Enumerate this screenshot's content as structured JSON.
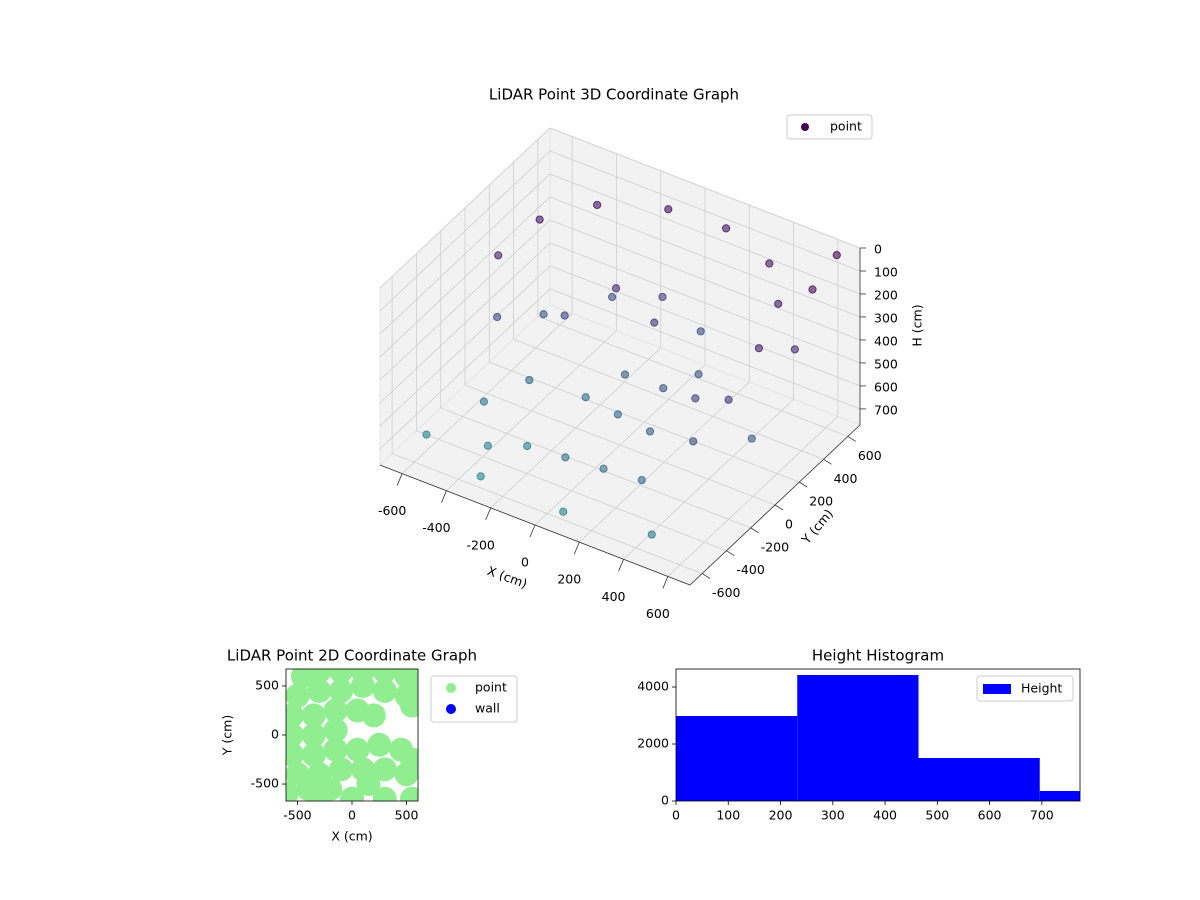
{
  "chart_data": [
    {
      "type": "scatter3d",
      "title": "LiDAR Point 3D Coordinate Graph",
      "xlabel": "X (cm)",
      "ylabel": "Y (cm)",
      "zlabel": "H (cm)",
      "series": [
        {
          "name": "point",
          "colormap": [
            "#440154",
            "#3b528b",
            "#21918c"
          ],
          "x": [
            -550,
            -500,
            -350,
            -100,
            150,
            400,
            550,
            600,
            600,
            550,
            -500,
            -400,
            -200,
            0,
            200,
            300,
            -300,
            -100,
            100,
            300,
            -450,
            -200,
            0,
            200,
            400,
            -600,
            -300,
            100,
            500,
            650,
            650,
            680,
            650,
            -100,
            100,
            -250,
            50,
            250,
            -350,
            450
          ],
          "y": [
            0,
            250,
            450,
            580,
            600,
            500,
            300,
            50,
            -200,
            -400,
            -100,
            100,
            300,
            350,
            300,
            100,
            -200,
            -100,
            -200,
            -300,
            -300,
            -400,
            -450,
            -500,
            -550,
            -500,
            -600,
            -650,
            -650,
            600,
            400,
            200,
            -100,
            150,
            100,
            0,
            -50,
            -100,
            -450,
            -200
          ],
          "z": [
            150,
            100,
            80,
            70,
            70,
            80,
            100,
            150,
            250,
            350,
            350,
            400,
            350,
            300,
            350,
            400,
            500,
            550,
            500,
            450,
            600,
            650,
            600,
            550,
            500,
            700,
            720,
            700,
            650,
            0,
            50,
            200,
            450,
            200,
            250,
            300,
            420,
            380,
            680,
            300
          ]
        }
      ],
      "xlim": [
        -700,
        700
      ],
      "ylim": [
        -700,
        700
      ],
      "zlim": [
        770,
        0
      ],
      "xticks": [
        -600,
        -400,
        -200,
        0,
        200,
        400,
        600
      ],
      "yticks": [
        -600,
        -400,
        -200,
        0,
        200,
        400,
        600
      ],
      "zticks": [
        0,
        100,
        200,
        300,
        400,
        500,
        600,
        700
      ],
      "legend": "upper right",
      "grid": true
    },
    {
      "type": "scatter",
      "title": "LiDAR Point 2D Coordinate Graph",
      "xlabel": "X (cm)",
      "ylabel": "Y (cm)",
      "series": [
        {
          "name": "point",
          "color": "#90ee90",
          "x": [
            -450,
            -300,
            -100,
            100,
            300,
            500,
            600,
            -500,
            -300,
            -100,
            100,
            300,
            500,
            550,
            -550,
            -350,
            -150,
            50,
            200,
            -550,
            -350,
            -150,
            -550,
            -350,
            -150,
            50,
            250,
            450,
            550,
            -500,
            -300,
            -100,
            100,
            300,
            500,
            -400,
            -200,
            150,
            -600,
            -300,
            0,
            300,
            550
          ],
          "y": [
            600,
            650,
            650,
            650,
            650,
            600,
            550,
            400,
            450,
            450,
            500,
            450,
            400,
            300,
            200,
            200,
            250,
            250,
            200,
            0,
            0,
            50,
            -200,
            -200,
            -150,
            -150,
            -100,
            -150,
            -250,
            -400,
            -400,
            -350,
            -350,
            -350,
            -400,
            -550,
            -550,
            -500,
            -600,
            -650,
            -650,
            -650,
            -650
          ]
        },
        {
          "name": "wall",
          "color": "#0000ff",
          "x": [],
          "y": []
        }
      ],
      "xlim": [
        -605,
        605
      ],
      "ylim": [
        -673,
        673
      ],
      "xticks": [
        -500,
        0,
        500
      ],
      "yticks": [
        -500,
        0,
        500
      ],
      "legend": "outside right"
    },
    {
      "type": "histogram",
      "title": "Height Histogram",
      "bins": [
        0,
        232,
        464,
        696,
        773
      ],
      "series": [
        {
          "name": "Height",
          "color": "#0000ff",
          "values": [
            2982,
            4421,
            1509,
            351
          ]
        }
      ],
      "xlim": [
        0,
        773
      ],
      "ylim": [
        0,
        4632
      ],
      "xticks": [
        0,
        100,
        200,
        300,
        400,
        500,
        600,
        700
      ],
      "yticks": [
        0,
        2000,
        4000
      ],
      "legend": "upper right"
    }
  ]
}
